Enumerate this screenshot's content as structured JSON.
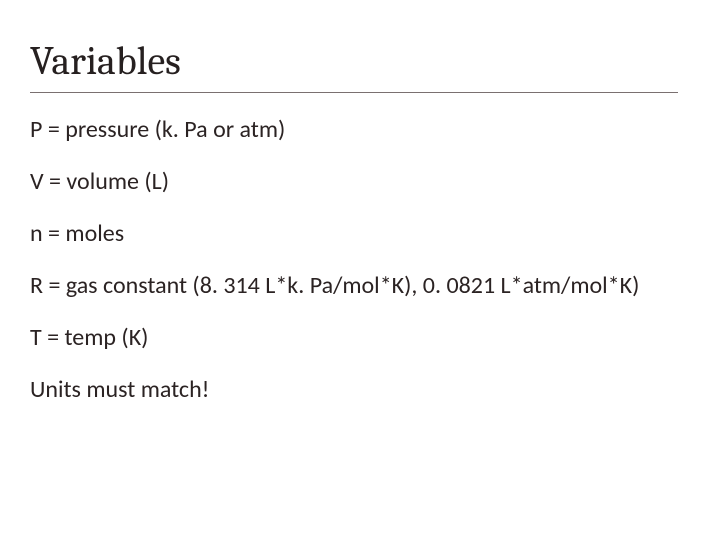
{
  "slide": {
    "title": "Variables",
    "title_font_family": "Cambria, Georgia, serif",
    "title_fontsize": 40,
    "title_color": "#262020",
    "rule_color": "#7a7070",
    "body_font_family": "Calibri, sans-serif",
    "body_fontsize": 24,
    "body_color": "#2b2323",
    "background_color": "#ffffff",
    "items": [
      "P = pressure (k. Pa or atm)",
      "V = volume (L)",
      "n = moles",
      "R = gas constant (8. 314 L*k. Pa/mol*K), 0. 0821 L*atm/mol*K)",
      "T = temp (K)",
      "Units must match!"
    ]
  }
}
